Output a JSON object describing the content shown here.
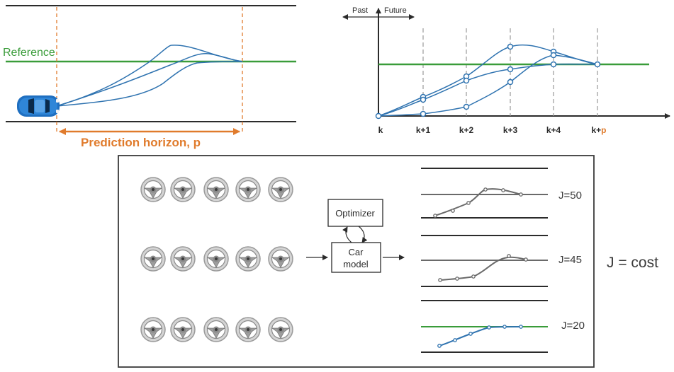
{
  "colors": {
    "road": "#2b2b2b",
    "reference": "#3a9c3a",
    "trajectory": "#2f73b0",
    "horizon": "#e07b2c",
    "grey_traj": "#6a6a6a",
    "car": "#1f6fc0"
  },
  "road_view": {
    "reference_label": "Reference",
    "horizon_label": "Prediction horizon, p",
    "car_icon": "car-icon"
  },
  "timeline": {
    "past_label": "Past",
    "future_label": "Future",
    "ticks": [
      {
        "base": "k",
        "suffix": ""
      },
      {
        "base": "k+1",
        "suffix": ""
      },
      {
        "base": "k+2",
        "suffix": ""
      },
      {
        "base": "k+3",
        "suffix": ""
      },
      {
        "base": "k+4",
        "suffix": ""
      },
      {
        "base": "k+",
        "suffix": "p"
      }
    ]
  },
  "diagram": {
    "optimizer_label": "Optimizer",
    "car_model_line1": "Car",
    "car_model_line2": "model",
    "wheel_icon": "steering-wheel-icon",
    "costs": [
      "J=50",
      "J=45",
      "J=20"
    ],
    "cost_legend": "J = cost"
  }
}
